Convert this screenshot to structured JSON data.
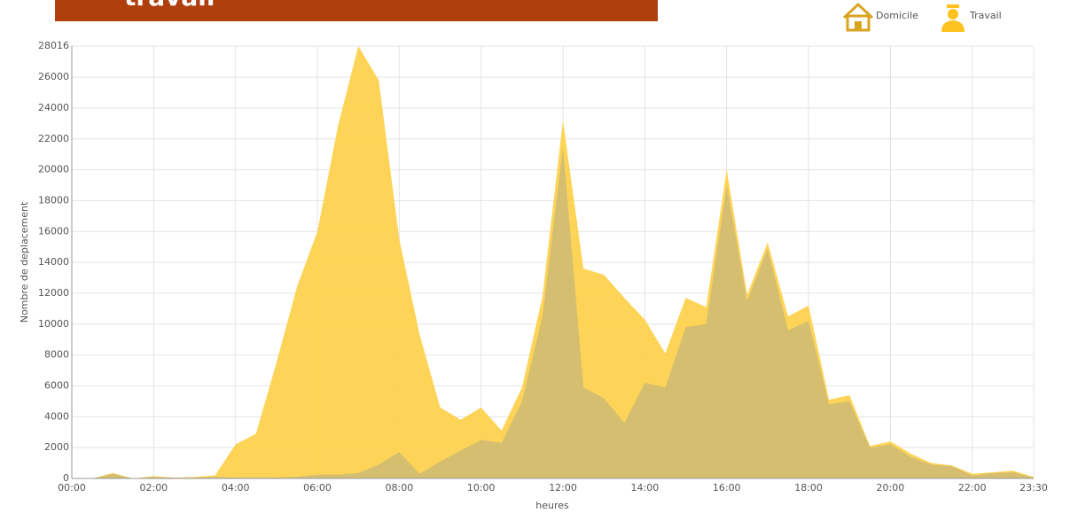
{
  "chart_data": {
    "type": "area",
    "title": "travail",
    "ylabel": "Nombre de deplacement",
    "xlabel": "heures",
    "categories": [
      "00:00",
      null,
      null,
      null,
      "02:00",
      null,
      null,
      null,
      "04:00",
      null,
      null,
      null,
      "06:00",
      null,
      null,
      null,
      "08:00",
      null,
      null,
      null,
      "10:00",
      null,
      null,
      null,
      "12:00",
      null,
      null,
      null,
      "14:00",
      null,
      null,
      null,
      "16:00",
      null,
      null,
      null,
      "18:00",
      null,
      null,
      null,
      "20:00",
      null,
      null,
      null,
      "22:00",
      null,
      null,
      "23:30"
    ],
    "series": [
      {
        "name": "Domicile",
        "color": "#d3bd72",
        "values": [
          0,
          0,
          300,
          0,
          100,
          50,
          50,
          100,
          50,
          50,
          50,
          100,
          250,
          250,
          350,
          900,
          1700,
          300,
          1100,
          1800,
          2500,
          2300,
          5000,
          10500,
          21500,
          5900,
          5200,
          3600,
          6200,
          5900,
          9800,
          10000,
          19000,
          11500,
          14900,
          9600,
          10200,
          4800,
          5000,
          2000,
          2200,
          1400,
          900,
          800,
          200,
          350,
          400,
          50
        ]
      },
      {
        "name": "Travail",
        "color": "#fdd24e",
        "values": [
          0,
          0,
          350,
          0,
          150,
          50,
          100,
          200,
          2200,
          2900,
          7500,
          12400,
          16000,
          22800,
          28016,
          25800,
          15500,
          9300,
          4600,
          3800,
          4600,
          3100,
          5900,
          11800,
          23200,
          13600,
          13200,
          11700,
          10300,
          8100,
          11700,
          11100,
          20000,
          11900,
          15300,
          10500,
          11200,
          5100,
          5400,
          2100,
          2400,
          1600,
          1000,
          850,
          300,
          400,
          500,
          100
        ]
      }
    ],
    "ylim": [
      0,
      28016
    ],
    "yticks": [
      0,
      2000,
      4000,
      6000,
      8000,
      10000,
      12000,
      14000,
      16000,
      18000,
      20000,
      22000,
      24000,
      26000,
      28016
    ],
    "grid": true,
    "legend": "top-right"
  }
}
